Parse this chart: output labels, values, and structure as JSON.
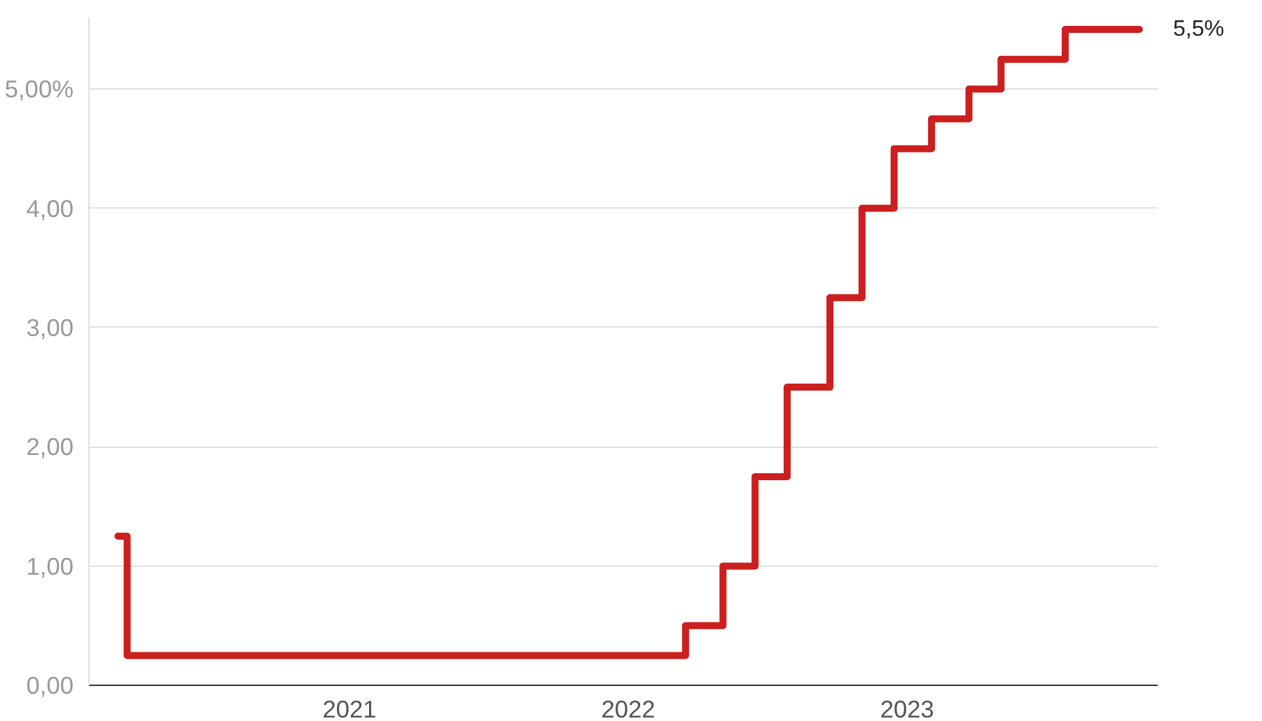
{
  "chart_data": {
    "type": "step",
    "x": [
      "2020-03-04",
      "2020-03-16",
      "2022-03-17",
      "2022-05-05",
      "2022-06-16",
      "2022-07-28",
      "2022-09-22",
      "2022-11-03",
      "2022-12-15",
      "2023-02-02",
      "2023-03-23",
      "2023-05-04",
      "2023-07-27",
      "2023-11-01"
    ],
    "series": [
      {
        "color": "#cc1f1f",
        "values": [
          1.25,
          0.25,
          0.5,
          1.0,
          1.75,
          2.5,
          3.25,
          4.0,
          4.5,
          4.75,
          5.0,
          5.25,
          5.5,
          5.5
        ]
      }
    ],
    "xlim": [
      "2020-01-26",
      "2023-11-25"
    ],
    "xticks": [
      "2021",
      "2022",
      "2023"
    ],
    "ylim": [
      0,
      5.6
    ],
    "yticks": [
      {
        "value": 0,
        "label": "0,00"
      },
      {
        "value": 1,
        "label": "1,00"
      },
      {
        "value": 2,
        "label": "2,00"
      },
      {
        "value": 3,
        "label": "3,00"
      },
      {
        "value": 4,
        "label": "4,00"
      },
      {
        "value": 5,
        "label": "5,00%"
      }
    ],
    "grid": "y",
    "annotations": [
      "5,5%"
    ]
  }
}
